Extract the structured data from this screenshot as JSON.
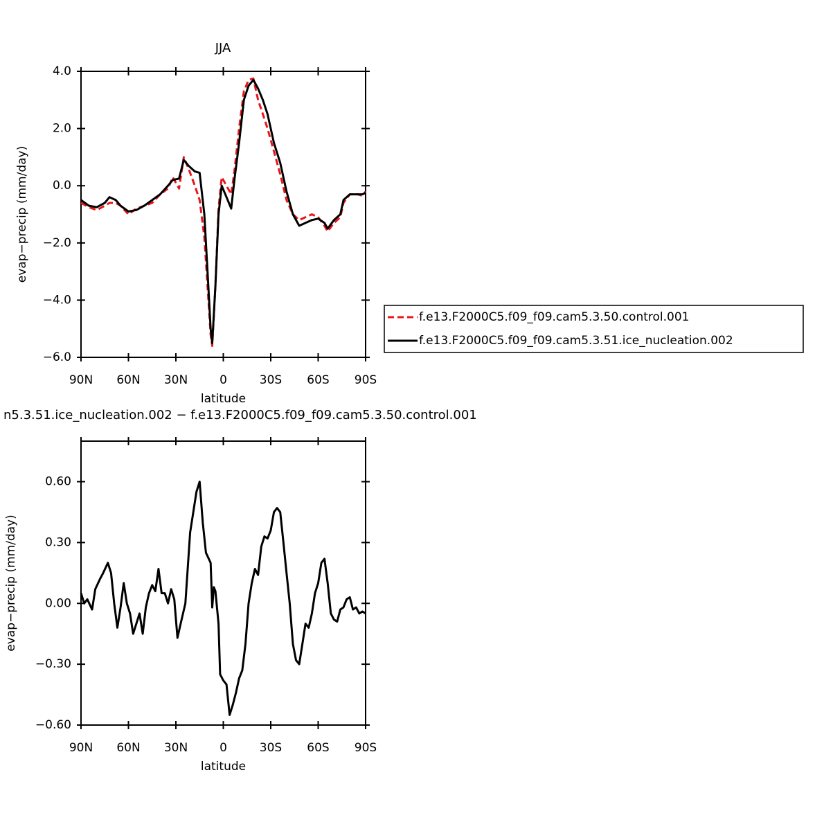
{
  "chart_data": [
    {
      "type": "line",
      "title": "JJA",
      "xlabel": "latitude",
      "ylabel": "evap−precip (mm/day)",
      "x": [
        90,
        85,
        80,
        75,
        72,
        68,
        65,
        60,
        55,
        50,
        45,
        40,
        35,
        32,
        28,
        25,
        22,
        18,
        15,
        12,
        10,
        8,
        7,
        5,
        3,
        1,
        -2,
        -5,
        -7,
        -10,
        -13,
        -16,
        -19,
        -22,
        -25,
        -28,
        -32,
        -36,
        -40,
        -44,
        -48,
        -52,
        -56,
        -60,
        -64,
        -66,
        -70,
        -74,
        -76,
        -80,
        -85,
        -88,
        -90
      ],
      "series": [
        {
          "name": "f.e13.F2000C5.f09_f09.cam5.3.50.control.001",
          "color": "#e8161b",
          "dash": true,
          "values": [
            -0.6,
            -0.75,
            -0.85,
            -0.7,
            -0.6,
            -0.6,
            -0.7,
            -1.0,
            -0.8,
            -0.7,
            -0.6,
            -0.3,
            -0.1,
            0.3,
            -0.1,
            1.0,
            0.6,
            0.0,
            -0.5,
            -1.8,
            -3.5,
            -5.2,
            -5.6,
            -3.5,
            -0.8,
            0.3,
            0.0,
            -0.3,
            0.5,
            2.0,
            3.3,
            3.7,
            3.75,
            3.0,
            2.5,
            2.0,
            1.2,
            0.4,
            -0.5,
            -1.0,
            -1.2,
            -1.1,
            -1.0,
            -1.1,
            -1.4,
            -1.6,
            -1.3,
            -1.1,
            -0.6,
            -0.3,
            -0.3,
            -0.35,
            -0.2
          ]
        },
        {
          "name": "f.e13.F2000C5.f09_f09.cam5.3.51.ice_nucleation.002",
          "color": "#000000",
          "dash": false,
          "values": [
            -0.5,
            -0.7,
            -0.75,
            -0.6,
            -0.4,
            -0.5,
            -0.7,
            -0.9,
            -0.85,
            -0.7,
            -0.5,
            -0.3,
            0.0,
            0.2,
            0.25,
            0.9,
            0.7,
            0.5,
            0.45,
            -1.0,
            -3.0,
            -5.0,
            -5.5,
            -3.5,
            -1.0,
            0.0,
            -0.4,
            -0.8,
            0.2,
            1.5,
            3.0,
            3.5,
            3.7,
            3.4,
            3.0,
            2.5,
            1.5,
            0.8,
            -0.2,
            -1.0,
            -1.4,
            -1.3,
            -1.2,
            -1.15,
            -1.3,
            -1.5,
            -1.2,
            -1.0,
            -0.5,
            -0.3,
            -0.3,
            -0.3,
            -0.25
          ]
        }
      ],
      "xlim": [
        90,
        -90
      ],
      "xticks": [
        {
          "value": 90,
          "label": "90N"
        },
        {
          "value": 60,
          "label": "60N"
        },
        {
          "value": 30,
          "label": "30N"
        },
        0,
        {
          "value": -30,
          "label": "30S"
        },
        {
          "value": -60,
          "label": "60S"
        },
        {
          "value": -90,
          "label": "90S"
        }
      ],
      "ylim": [
        -6,
        4
      ],
      "yticks": [
        {
          "value": -6,
          "label": "−6.0"
        },
        {
          "value": -4,
          "label": "−4.0"
        },
        {
          "value": -2,
          "label": "−2.0"
        },
        {
          "value": 0,
          "label": "0.0"
        },
        {
          "value": 2,
          "label": "2.0"
        },
        {
          "value": 4,
          "label": "4.0"
        }
      ],
      "legend": "right"
    },
    {
      "type": "line",
      "title": "n5.3.51.ice_nucleation.002 − f.e13.F2000C5.f09_f09.cam5.3.50.control.001",
      "xlabel": "latitude",
      "ylabel": "evap−precip (mm/day)",
      "x": [
        90,
        88,
        86,
        83,
        81,
        78,
        76,
        73,
        71,
        69,
        67,
        65,
        63,
        61,
        59,
        57,
        55,
        53,
        51,
        49,
        47,
        45,
        43,
        41,
        39,
        37,
        35,
        33,
        31,
        29,
        27,
        24,
        21,
        17,
        15,
        13,
        11,
        8,
        7,
        6,
        5,
        3,
        2,
        0,
        -2,
        -4,
        -6,
        -8,
        -10,
        -12,
        -14,
        -16,
        -18,
        -20,
        -22,
        -24,
        -26,
        -28,
        -30,
        -32,
        -34,
        -36,
        -38,
        -40,
        -42,
        -44,
        -46,
        -48,
        -50,
        -52,
        -54,
        -56,
        -58,
        -60,
        -62,
        -64,
        -66,
        -68,
        -70,
        -72,
        -74,
        -76,
        -78,
        -80,
        -82,
        -84,
        -86,
        -88,
        -90
      ],
      "series": [
        {
          "color": "#000000",
          "dash": false,
          "values": [
            0.05,
            0.0,
            0.02,
            -0.03,
            0.07,
            0.12,
            0.15,
            0.2,
            0.15,
            0.0,
            -0.12,
            -0.02,
            0.1,
            0.0,
            -0.05,
            -0.15,
            -0.1,
            -0.05,
            -0.15,
            -0.02,
            0.05,
            0.09,
            0.06,
            0.17,
            0.05,
            0.05,
            0.0,
            0.07,
            0.02,
            -0.17,
            -0.1,
            0.0,
            0.35,
            0.55,
            0.6,
            0.4,
            0.25,
            0.2,
            -0.02,
            0.08,
            0.06,
            -0.1,
            -0.35,
            -0.38,
            -0.4,
            -0.55,
            -0.5,
            -0.44,
            -0.37,
            -0.33,
            -0.2,
            0.0,
            0.1,
            0.17,
            0.14,
            0.28,
            0.33,
            0.32,
            0.36,
            0.45,
            0.47,
            0.45,
            0.3,
            0.15,
            0.0,
            -0.2,
            -0.28,
            -0.3,
            -0.2,
            -0.1,
            -0.12,
            -0.05,
            0.05,
            0.1,
            0.2,
            0.22,
            0.1,
            -0.05,
            -0.08,
            -0.09,
            -0.03,
            -0.02,
            0.02,
            0.03,
            -0.03,
            -0.02,
            -0.05,
            -0.04,
            -0.05
          ]
        }
      ],
      "xlim": [
        90,
        -90
      ],
      "xticks": [
        {
          "value": 90,
          "label": "90N"
        },
        {
          "value": 60,
          "label": "60N"
        },
        {
          "value": 30,
          "label": "30N"
        },
        0,
        {
          "value": -30,
          "label": "30S"
        },
        {
          "value": -60,
          "label": "60S"
        },
        {
          "value": -90,
          "label": "90S"
        }
      ],
      "ylim": [
        -0.6,
        0.8
      ],
      "yticks": [
        {
          "value": -0.6,
          "label": "−0.60"
        },
        {
          "value": -0.3,
          "label": "−0.30"
        },
        {
          "value": 0,
          "label": "0.00"
        },
        {
          "value": 0.3,
          "label": "0.30"
        },
        {
          "value": 0.6,
          "label": "0.60"
        }
      ]
    }
  ]
}
